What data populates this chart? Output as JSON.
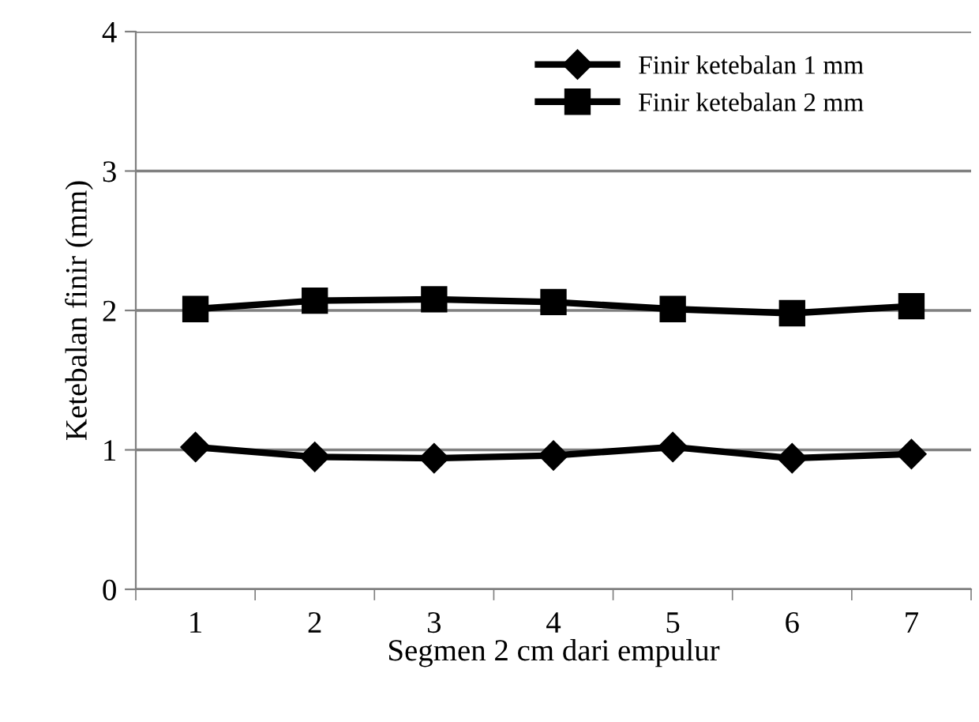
{
  "chart_data": {
    "type": "line",
    "xlabel": "Segmen 2 cm dari empulur",
    "ylabel": "Ketebalan finir (mm)",
    "categories": [
      "1",
      "2",
      "3",
      "4",
      "5",
      "6",
      "7"
    ],
    "series": [
      {
        "name": "Finir ketebalan 1 mm",
        "color": "#000000",
        "marker": "diamond",
        "values": [
          1.02,
          0.95,
          0.94,
          0.96,
          1.02,
          0.94,
          0.97
        ]
      },
      {
        "name": "Finir ketebalan 2 mm",
        "color": "#000000",
        "marker": "square",
        "values": [
          2.01,
          2.07,
          2.08,
          2.06,
          2.01,
          1.98,
          2.03
        ]
      }
    ],
    "ylim": [
      0,
      4
    ],
    "yticks": [
      0,
      1,
      2,
      3,
      4
    ],
    "grid": "y",
    "legend": "top right",
    "line_style": "solid"
  }
}
